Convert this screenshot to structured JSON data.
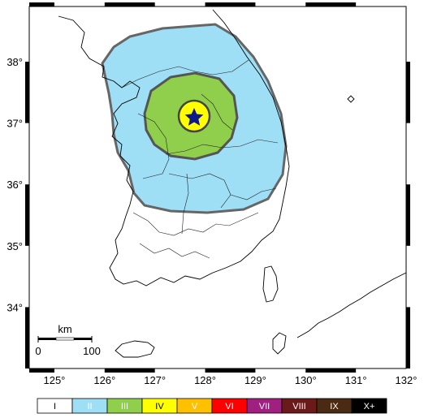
{
  "map": {
    "lon_ticks": [
      {
        "value": 125,
        "label": "125°"
      },
      {
        "value": 126,
        "label": "126°"
      },
      {
        "value": 127,
        "label": "127°"
      },
      {
        "value": 128,
        "label": "128°"
      },
      {
        "value": 129,
        "label": "129°"
      },
      {
        "value": 130,
        "label": "130°"
      },
      {
        "value": 131,
        "label": "131°"
      },
      {
        "value": 132,
        "label": "132°"
      }
    ],
    "lat_ticks": [
      {
        "value": 38,
        "label": "38°"
      },
      {
        "value": 37,
        "label": "37°"
      },
      {
        "value": 36,
        "label": "36°"
      },
      {
        "value": 35,
        "label": "35°"
      },
      {
        "value": 34,
        "label": "34°"
      }
    ],
    "lon_range": [
      124.5,
      132
    ],
    "lat_range": [
      33,
      38.9
    ],
    "epicenter": {
      "lon": 127.75,
      "lat": 37.13,
      "marker": "star-icon",
      "color": "#0d1a8c"
    },
    "intensity_zones": [
      {
        "class": "II",
        "color": "#9edff6",
        "extent": "outer"
      },
      {
        "class": "III",
        "color": "#8fcf4c",
        "extent": "middle"
      },
      {
        "class": "IV",
        "color": "#ffff00",
        "extent": "inner"
      }
    ],
    "zone_outline_color": "#666666"
  },
  "scale_bar": {
    "unit": "km",
    "start_label": "0",
    "end_label": "100",
    "length_km": 100
  },
  "legend": [
    {
      "label": "I",
      "color": "#ffffff",
      "text_color": "#000000"
    },
    {
      "label": "II",
      "color": "#9edff6",
      "text_color": "#ffffff"
    },
    {
      "label": "III",
      "color": "#8fcf4c",
      "text_color": "#ffffff"
    },
    {
      "label": "IV",
      "color": "#ffff00",
      "text_color": "#000000"
    },
    {
      "label": "V",
      "color": "#ffc000",
      "text_color": "#ffffff"
    },
    {
      "label": "VI",
      "color": "#ff0000",
      "text_color": "#ffffff"
    },
    {
      "label": "VII",
      "color": "#a0207f",
      "text_color": "#ffffff"
    },
    {
      "label": "VIII",
      "color": "#6b1a1a",
      "text_color": "#ffffff"
    },
    {
      "label": "IX",
      "color": "#4a2a12",
      "text_color": "#ffffff"
    },
    {
      "label": "X+",
      "color": "#000000",
      "text_color": "#ffffff"
    }
  ]
}
